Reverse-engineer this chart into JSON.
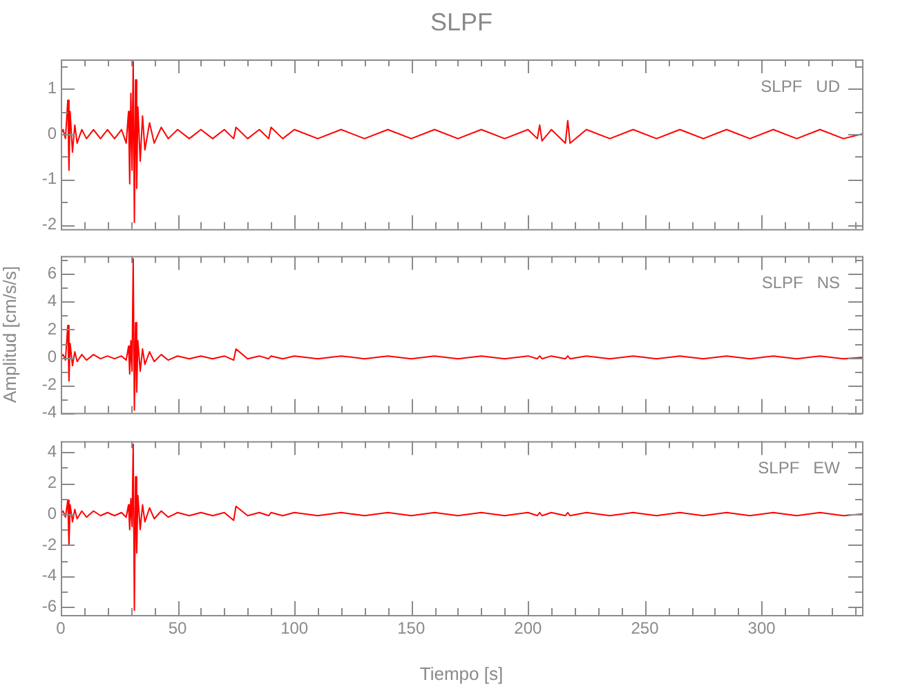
{
  "chart_data": [
    {
      "type": "line",
      "title": "SLPF",
      "annotations": [
        "SLPF   UD"
      ],
      "marker": "none",
      "tick_labels": "y",
      "xlim": [
        0,
        343
      ],
      "xticks": [
        0,
        {
          "value": 10,
          "label": null
        },
        {
          "value": 20,
          "label": null
        },
        {
          "value": 30,
          "label": null
        },
        {
          "value": 40,
          "label": null
        },
        50,
        {
          "value": 60,
          "label": null
        },
        {
          "value": 70,
          "label": null
        },
        {
          "value": 80,
          "label": null
        },
        {
          "value": 90,
          "label": null
        },
        100,
        {
          "value": 110,
          "label": null
        },
        {
          "value": 120,
          "label": null
        },
        {
          "value": 130,
          "label": null
        },
        {
          "value": 140,
          "label": null
        },
        150,
        {
          "value": 160,
          "label": null
        },
        {
          "value": 170,
          "label": null
        },
        {
          "value": 180,
          "label": null
        },
        {
          "value": 190,
          "label": null
        },
        200,
        {
          "value": 210,
          "label": null
        },
        {
          "value": 220,
          "label": null
        },
        {
          "value": 230,
          "label": null
        },
        {
          "value": 240,
          "label": null
        },
        250,
        {
          "value": 260,
          "label": null
        },
        {
          "value": 270,
          "label": null
        },
        {
          "value": 280,
          "label": null
        },
        {
          "value": 290,
          "label": null
        },
        300,
        {
          "value": 310,
          "label": null
        },
        {
          "value": 320,
          "label": null
        },
        {
          "value": 330,
          "label": null
        },
        {
          "value": 340,
          "label": null
        }
      ],
      "ylim": [
        -2.1,
        1.65
      ],
      "yticks": [
        -2,
        {
          "value": -1.5,
          "label": null
        },
        -1,
        {
          "value": -0.5,
          "label": null
        },
        0,
        {
          "value": 0.5,
          "label": null
        },
        1,
        {
          "value": 1.5,
          "label": null
        }
      ],
      "x": [
        0,
        1,
        2,
        3,
        3.5,
        4,
        5,
        6,
        7,
        9,
        11,
        14,
        17,
        20,
        23,
        26,
        28,
        29,
        29.5,
        30,
        30.5,
        31,
        31.5,
        32,
        32.5,
        33,
        34,
        35,
        36,
        38,
        40,
        43,
        46,
        50,
        55,
        60,
        65,
        70,
        74,
        75,
        80,
        85,
        89,
        90,
        95,
        100,
        110,
        120,
        130,
        140,
        150,
        160,
        170,
        180,
        190,
        200,
        204,
        205,
        206,
        210,
        216,
        217,
        218,
        225,
        235,
        245,
        255,
        265,
        275,
        285,
        295,
        305,
        315,
        325,
        335,
        343
      ],
      "series": [
        {
          "color": "#ff0000",
          "values": [
            0,
            0.1,
            -0.1,
            0.75,
            -0.8,
            0.5,
            -0.4,
            0.2,
            -0.2,
            0.1,
            -0.1,
            0.1,
            -0.1,
            0.1,
            -0.1,
            0.1,
            -0.2,
            0.5,
            -1.1,
            0.9,
            -0.8,
            1.6,
            -1.95,
            1.2,
            -1.2,
            0.6,
            -0.6,
            0.4,
            -0.35,
            0.25,
            -0.2,
            0.15,
            -0.1,
            0.1,
            -0.1,
            0.1,
            -0.1,
            0.1,
            -0.1,
            0.15,
            -0.1,
            0.1,
            -0.1,
            0.15,
            -0.1,
            0.1,
            -0.1,
            0.1,
            -0.1,
            0.1,
            -0.1,
            0.1,
            -0.1,
            0.1,
            -0.1,
            0.1,
            -0.1,
            0.2,
            -0.15,
            0.1,
            -0.2,
            0.3,
            -0.2,
            0.1,
            -0.1,
            0.1,
            -0.1,
            0.1,
            -0.1,
            0.1,
            -0.1,
            0.1,
            -0.1,
            0.1,
            -0.1,
            0
          ]
        }
      ]
    },
    {
      "type": "line",
      "annotations": [
        "SLPF   NS"
      ],
      "ylabel": "Amplitud [cm/s/s]",
      "marker": "none",
      "tick_labels": "y",
      "xlim": [
        0,
        343
      ],
      "xticks": [
        0,
        {
          "value": 10,
          "label": null
        },
        {
          "value": 20,
          "label": null
        },
        {
          "value": 30,
          "label": null
        },
        {
          "value": 40,
          "label": null
        },
        50,
        {
          "value": 60,
          "label": null
        },
        {
          "value": 70,
          "label": null
        },
        {
          "value": 80,
          "label": null
        },
        {
          "value": 90,
          "label": null
        },
        100,
        {
          "value": 110,
          "label": null
        },
        {
          "value": 120,
          "label": null
        },
        {
          "value": 130,
          "label": null
        },
        {
          "value": 140,
          "label": null
        },
        150,
        {
          "value": 160,
          "label": null
        },
        {
          "value": 170,
          "label": null
        },
        {
          "value": 180,
          "label": null
        },
        {
          "value": 190,
          "label": null
        },
        200,
        {
          "value": 210,
          "label": null
        },
        {
          "value": 220,
          "label": null
        },
        {
          "value": 230,
          "label": null
        },
        {
          "value": 240,
          "label": null
        },
        250,
        {
          "value": 260,
          "label": null
        },
        {
          "value": 270,
          "label": null
        },
        {
          "value": 280,
          "label": null
        },
        {
          "value": 290,
          "label": null
        },
        300,
        {
          "value": 310,
          "label": null
        },
        {
          "value": 320,
          "label": null
        },
        {
          "value": 330,
          "label": null
        },
        {
          "value": 340,
          "label": null
        }
      ],
      "ylim": [
        -4,
        7.3
      ],
      "yticks": [
        -4,
        {
          "value": -3,
          "label": null
        },
        -2,
        {
          "value": -1,
          "label": null
        },
        0,
        {
          "value": 1,
          "label": null
        },
        2,
        {
          "value": 3,
          "label": null
        },
        4,
        {
          "value": 5,
          "label": null
        },
        6,
        {
          "value": 7,
          "label": null
        }
      ],
      "x": [
        0,
        1,
        2,
        3,
        3.5,
        4,
        5,
        6,
        7,
        9,
        11,
        14,
        17,
        20,
        23,
        26,
        28,
        29,
        29.5,
        30,
        30.5,
        31,
        31.5,
        32,
        32.5,
        33,
        34,
        35,
        36,
        38,
        40,
        43,
        46,
        50,
        55,
        60,
        65,
        70,
        74,
        75,
        80,
        85,
        89,
        90,
        95,
        100,
        110,
        120,
        130,
        140,
        150,
        160,
        170,
        180,
        190,
        200,
        204,
        205,
        206,
        210,
        216,
        217,
        218,
        225,
        235,
        245,
        255,
        265,
        275,
        285,
        295,
        305,
        315,
        325,
        335,
        343
      ],
      "series": [
        {
          "color": "#ff0000",
          "values": [
            0,
            0.2,
            -0.2,
            2.3,
            -1.7,
            1.0,
            -0.6,
            0.4,
            -0.3,
            0.2,
            -0.2,
            0.2,
            -0.1,
            0.1,
            -0.1,
            0.1,
            -0.2,
            0.8,
            -1.2,
            1.2,
            -1.0,
            7.1,
            -3.8,
            2.5,
            -2.5,
            1.2,
            -1.0,
            0.6,
            -0.5,
            0.4,
            -0.3,
            0.2,
            -0.2,
            0.1,
            -0.1,
            0.1,
            -0.1,
            0.1,
            -0.2,
            0.6,
            -0.1,
            0.1,
            -0.1,
            0.1,
            -0.1,
            0.1,
            -0.1,
            0.1,
            -0.1,
            0.1,
            -0.1,
            0.1,
            -0.1,
            0.1,
            -0.1,
            0.1,
            -0.1,
            0.1,
            -0.1,
            0.1,
            -0.1,
            0.1,
            -0.1,
            0.1,
            -0.1,
            0.1,
            -0.1,
            0.1,
            -0.1,
            0.1,
            -0.1,
            0.1,
            -0.1,
            0.1,
            -0.1,
            0
          ]
        }
      ]
    },
    {
      "type": "line",
      "annotations": [
        "SLPF   EW"
      ],
      "xlabel": "Tiempo [s]",
      "marker": "none",
      "xlim": [
        0,
        343
      ],
      "xticks": [
        0,
        {
          "value": 10,
          "label": null
        },
        {
          "value": 20,
          "label": null
        },
        {
          "value": 30,
          "label": null
        },
        {
          "value": 40,
          "label": null
        },
        50,
        {
          "value": 60,
          "label": null
        },
        {
          "value": 70,
          "label": null
        },
        {
          "value": 80,
          "label": null
        },
        {
          "value": 90,
          "label": null
        },
        100,
        {
          "value": 110,
          "label": null
        },
        {
          "value": 120,
          "label": null
        },
        {
          "value": 130,
          "label": null
        },
        {
          "value": 140,
          "label": null
        },
        150,
        {
          "value": 160,
          "label": null
        },
        {
          "value": 170,
          "label": null
        },
        {
          "value": 180,
          "label": null
        },
        {
          "value": 190,
          "label": null
        },
        200,
        {
          "value": 210,
          "label": null
        },
        {
          "value": 220,
          "label": null
        },
        {
          "value": 230,
          "label": null
        },
        {
          "value": 240,
          "label": null
        },
        250,
        {
          "value": 260,
          "label": null
        },
        {
          "value": 270,
          "label": null
        },
        {
          "value": 280,
          "label": null
        },
        {
          "value": 290,
          "label": null
        },
        300,
        {
          "value": 310,
          "label": null
        },
        {
          "value": 320,
          "label": null
        },
        {
          "value": 330,
          "label": null
        },
        {
          "value": 340,
          "label": null
        }
      ],
      "ylim": [
        -6.5,
        4.7
      ],
      "yticks": [
        -6,
        {
          "value": -5,
          "label": null
        },
        -4,
        {
          "value": -3,
          "label": null
        },
        -2,
        {
          "value": -1,
          "label": null
        },
        0,
        {
          "value": 1,
          "label": null
        },
        2,
        {
          "value": 3,
          "label": null
        },
        4
      ],
      "x": [
        0,
        1,
        2,
        3,
        3.5,
        4,
        5,
        6,
        7,
        9,
        11,
        14,
        17,
        20,
        23,
        26,
        28,
        29,
        29.5,
        30,
        30.5,
        31,
        31.5,
        32,
        32.5,
        33,
        34,
        35,
        36,
        38,
        40,
        43,
        46,
        50,
        55,
        60,
        65,
        70,
        74,
        75,
        80,
        85,
        89,
        90,
        95,
        100,
        110,
        120,
        130,
        140,
        150,
        160,
        170,
        180,
        190,
        200,
        204,
        205,
        206,
        210,
        216,
        217,
        218,
        225,
        235,
        245,
        255,
        265,
        275,
        285,
        295,
        305,
        315,
        325,
        335,
        343
      ],
      "series": [
        {
          "color": "#ff0000",
          "values": [
            0,
            0.2,
            -0.2,
            0.9,
            -2.0,
            0.6,
            -0.5,
            0.3,
            -0.3,
            0.2,
            -0.2,
            0.2,
            -0.1,
            0.1,
            -0.1,
            0.1,
            -0.2,
            0.6,
            -1.0,
            1.0,
            -0.8,
            4.5,
            -6.2,
            2.4,
            -2.5,
            1.2,
            -1.0,
            0.6,
            -0.5,
            0.4,
            -0.3,
            0.2,
            -0.2,
            0.1,
            -0.1,
            0.1,
            -0.1,
            0.1,
            -0.4,
            0.5,
            -0.1,
            0.1,
            -0.1,
            0.1,
            -0.1,
            0.1,
            -0.1,
            0.1,
            -0.1,
            0.1,
            -0.1,
            0.1,
            -0.1,
            0.1,
            -0.1,
            0.1,
            -0.1,
            0.1,
            -0.1,
            0.1,
            -0.1,
            0.1,
            -0.1,
            0.1,
            -0.1,
            0.1,
            -0.1,
            0.1,
            -0.1,
            0.1,
            -0.1,
            0.1,
            -0.1,
            0.1,
            -0.1,
            0
          ]
        }
      ]
    }
  ]
}
